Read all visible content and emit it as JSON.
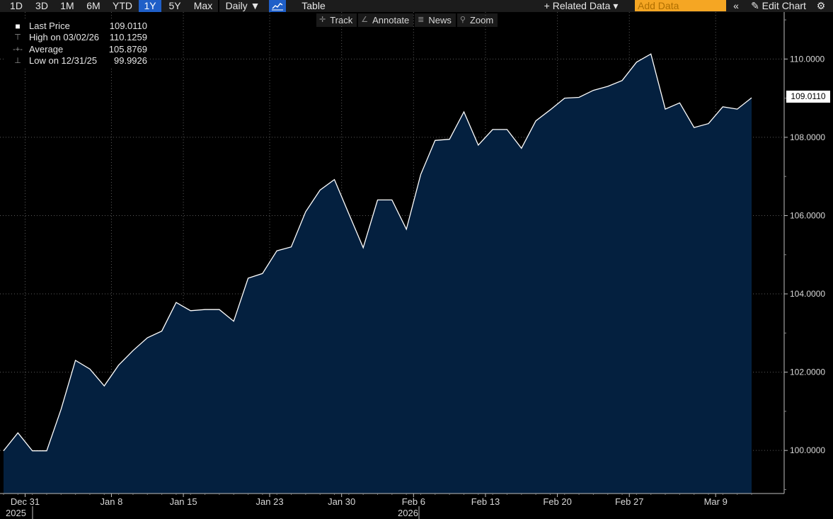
{
  "toolbar": {
    "ranges": [
      "1D",
      "3D",
      "1M",
      "6M",
      "YTD",
      "1Y",
      "5Y",
      "Max"
    ],
    "active_range": "1Y",
    "frequency": "Daily ▼",
    "chart_icon": "line-chart-icon",
    "table_label": "Table",
    "related_data": "+ Related Data ▾",
    "add_data_placeholder": "Add Data",
    "collapse_icon": "«",
    "edit_chart": "✎ Edit Chart",
    "settings_icon": "⚙"
  },
  "subtoolbar": {
    "track": "Track",
    "annotate": "Annotate",
    "news": "News",
    "zoom": "Zoom"
  },
  "legend": {
    "last_price_label": "Last Price",
    "last_price_value": "109.0110",
    "high_label": "High on 03/02/26",
    "high_value": "110.1259",
    "average_label": "Average",
    "average_value": "105.8769",
    "low_label": "Low on 12/31/25",
    "low_value": "99.9926"
  },
  "last_price_tag": "109.0110",
  "colors": {
    "background": "#000000",
    "area_fill": "#04203f",
    "line": "#ffffff",
    "accent": "#1f5fc8",
    "add_data_bg": "#f5a623"
  },
  "chart_data": {
    "type": "area",
    "series": [
      {
        "values": [
          99.99,
          100.45,
          99.99,
          99.99,
          101.05,
          102.3,
          102.08,
          101.65,
          102.18,
          102.55,
          102.88,
          103.05,
          103.78,
          103.57,
          103.6,
          103.6,
          103.3,
          104.4,
          104.52,
          105.1,
          105.2,
          106.1,
          106.65,
          106.92,
          106.05,
          105.18,
          106.4,
          106.4,
          105.65,
          107.05,
          107.92,
          107.95,
          108.65,
          107.8,
          108.2,
          108.2,
          107.72,
          108.42,
          108.7,
          109.0,
          109.02,
          109.2,
          109.3,
          109.45,
          109.92,
          110.13,
          108.72,
          108.88,
          108.25,
          108.35,
          108.78,
          108.72,
          109.01
        ]
      }
    ],
    "ylim": [
      98.9,
      111.2
    ],
    "yticks": [
      "100.0000",
      "102.0000",
      "104.0000",
      "106.0000",
      "108.0000",
      "110.0000"
    ],
    "xticks": [
      "Dec 31",
      "Jan 8",
      "Jan 15",
      "Jan 23",
      "Jan 30",
      "Feb 6",
      "Feb 13",
      "Feb 20",
      "Feb 27",
      "Mar 9"
    ],
    "year_labels": [
      "2025",
      "2026"
    ],
    "grid": true
  }
}
